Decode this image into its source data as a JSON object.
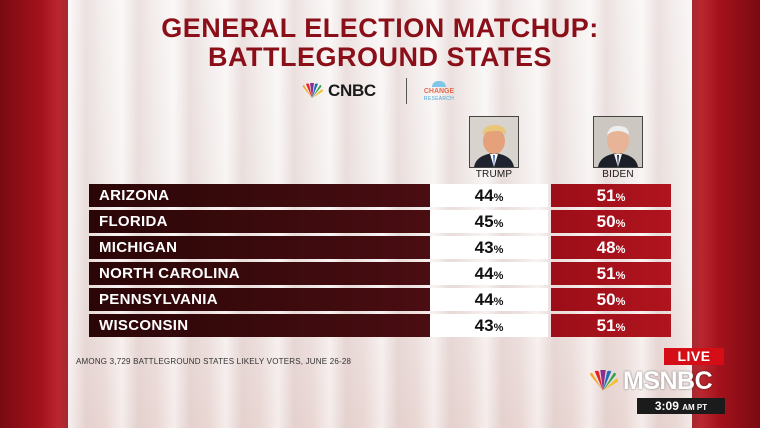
{
  "title_line1": "GENERAL ELECTION MATCHUP:",
  "title_line2": "BATTLEGROUND STATES",
  "logos": {
    "cnbc": "CNBC",
    "partner_line1": "CHANGE",
    "partner_line2": "RESEARCH"
  },
  "candidates": {
    "left": {
      "name": "TRUMP"
    },
    "right": {
      "name": "BIDEN"
    }
  },
  "rows": [
    {
      "state": "ARIZONA",
      "trump": "44",
      "biden": "51"
    },
    {
      "state": "FLORIDA",
      "trump": "45",
      "biden": "50"
    },
    {
      "state": "MICHIGAN",
      "trump": "43",
      "biden": "48"
    },
    {
      "state": "NORTH CAROLINA",
      "trump": "44",
      "biden": "51"
    },
    {
      "state": "PENNSYLVANIA",
      "trump": "44",
      "biden": "50"
    },
    {
      "state": "WISCONSIN",
      "trump": "43",
      "biden": "51"
    }
  ],
  "pct_sign": "%",
  "footnote": "AMONG 3,729 BATTLEGROUND STATES LIKELY VOTERS, JUNE 26-28",
  "broadcast": {
    "live": "LIVE",
    "network": "MSNBC",
    "time": "3:09",
    "ampm": "AM PT"
  },
  "colors": {
    "title": "#8b0f18",
    "edge": "#a3121c",
    "state_bg": "#3a0a0c",
    "biden_bg": "#b0141e",
    "live_bg": "#d40d17"
  }
}
